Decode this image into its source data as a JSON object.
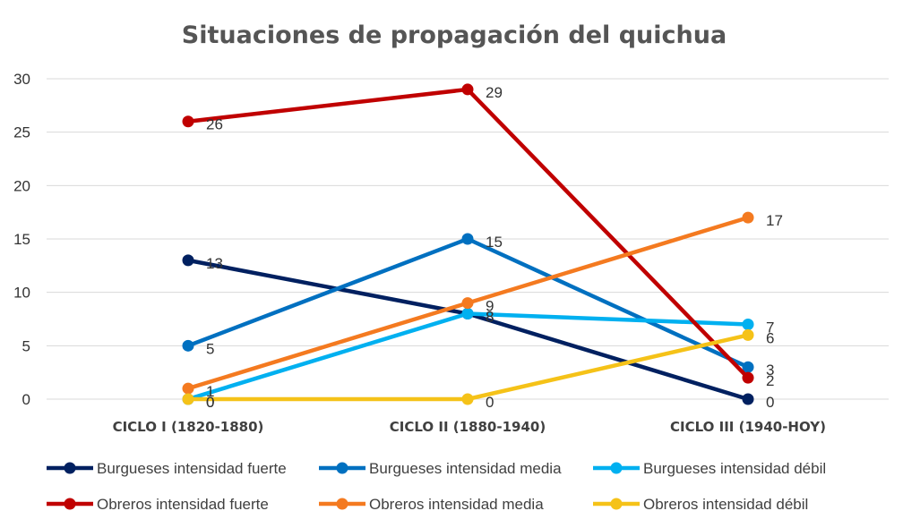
{
  "chart_data": {
    "type": "line",
    "title": "Situaciones de propagación del quichua",
    "xlabel": "",
    "ylabel": "",
    "categories": [
      "CICLO I (1820-1880)",
      "CICLO II (1880-1940)",
      "CICLO III (1940-HOY)"
    ],
    "ylim": [
      0,
      30
    ],
    "yticks": [
      0,
      5,
      10,
      15,
      20,
      25,
      30
    ],
    "grid": true,
    "legend_position": "bottom",
    "series": [
      {
        "name": "Burgueses intensidad fuerte",
        "values": [
          13,
          8,
          0
        ],
        "color": "#002060"
      },
      {
        "name": "Burgueses intensidad media",
        "values": [
          5,
          15,
          3
        ],
        "color": "#0070C0"
      },
      {
        "name": "Burgueses intensidad débil",
        "values": [
          0,
          8,
          7
        ],
        "color": "#00B0F0"
      },
      {
        "name": "Obreros intensidad fuerte",
        "values": [
          26,
          29,
          2
        ],
        "color": "#C00000"
      },
      {
        "name": "Obreros intensidad media",
        "values": [
          1,
          9,
          17
        ],
        "color": "#F47A20"
      },
      {
        "name": "Obreros intensidad débil",
        "values": [
          0,
          0,
          6
        ],
        "color": "#F5C218"
      }
    ]
  }
}
